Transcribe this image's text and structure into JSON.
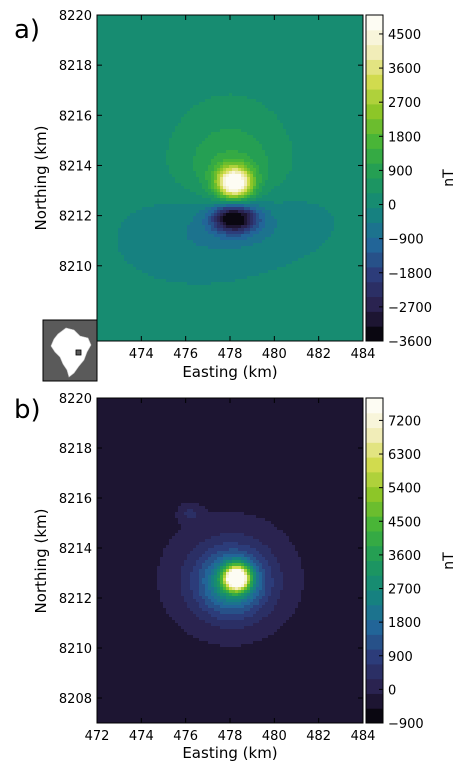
{
  "chart_data": [
    {
      "type": "heatmap",
      "panel_label": "a)",
      "xlabel": "Easting (km)",
      "ylabel": "Northing (km)",
      "xlim": [
        472,
        484
      ],
      "ylim": [
        8207,
        8220
      ],
      "x_ticks": [
        "474",
        "476",
        "478",
        "480",
        "482",
        "484"
      ],
      "y_ticks": [
        "8210",
        "8212",
        "8214",
        "8216",
        "8218",
        "8220"
      ],
      "colorbar": {
        "unit": "nT",
        "range": [
          -3600,
          5000
        ],
        "ticks": [
          "-3600",
          "-2700",
          "-1800",
          "-900",
          "0",
          "900",
          "1800",
          "2700",
          "3600",
          "4500"
        ],
        "colors": [
          "#000000",
          "#2a1f4a",
          "#2c3a78",
          "#22679a",
          "#14857c",
          "#1e9a5a",
          "#3fb23a",
          "#8ac526",
          "#d4dc50",
          "#f5f0c8",
          "#ffffff"
        ]
      },
      "background_value": 0,
      "anomalies": [
        {
          "x": 478.2,
          "y": 8213.3,
          "amplitude": 5000,
          "sx": 0.55,
          "sy": 0.45
        },
        {
          "x": 478.0,
          "y": 8213.8,
          "amplitude": 900,
          "sx": 1.6,
          "sy": 1.3
        },
        {
          "x": 478.0,
          "y": 8215.5,
          "amplitude": 300,
          "sx": 2.6,
          "sy": 2.2
        },
        {
          "x": 478.2,
          "y": 8211.9,
          "amplitude": -3600,
          "sx": 0.7,
          "sy": 0.4
        },
        {
          "x": 478.3,
          "y": 8211.8,
          "amplitude": -700,
          "sx": 2.2,
          "sy": 0.9
        },
        {
          "x": 476.5,
          "y": 8210.8,
          "amplitude": -250,
          "sx": 2.2,
          "sy": 1.0
        }
      ],
      "inset": "brazil-location-map"
    },
    {
      "type": "heatmap",
      "panel_label": "b)",
      "xlabel": "Easting (km)",
      "ylabel": "Northing (km)",
      "xlim": [
        472,
        484
      ],
      "ylim": [
        8207,
        8220
      ],
      "x_ticks": [
        "472",
        "474",
        "476",
        "478",
        "480",
        "482",
        "484"
      ],
      "y_ticks": [
        "8208",
        "8210",
        "8212",
        "8214",
        "8216",
        "8218",
        "8220"
      ],
      "colorbar": {
        "unit": "nT",
        "range": [
          -900,
          7800
        ],
        "ticks": [
          "-900",
          "0",
          "900",
          "1800",
          "2700",
          "3600",
          "4500",
          "5400",
          "6300",
          "7200"
        ],
        "colors": [
          "#000000",
          "#2a1f4a",
          "#2c3a78",
          "#22679a",
          "#14857c",
          "#1e9a5a",
          "#3fb23a",
          "#8ac526",
          "#d4dc50",
          "#f5f0c8",
          "#ffffff"
        ]
      },
      "background_value": -350,
      "anomalies": [
        {
          "x": 478.3,
          "y": 8212.8,
          "amplitude": 7800,
          "sx": 0.4,
          "sy": 0.35
        },
        {
          "x": 478.1,
          "y": 8212.6,
          "amplitude": 2500,
          "sx": 1.0,
          "sy": 0.85
        },
        {
          "x": 478.0,
          "y": 8212.8,
          "amplitude": 900,
          "sx": 2.0,
          "sy": 1.6
        },
        {
          "x": 476.2,
          "y": 8215.4,
          "amplitude": 600,
          "sx": 0.35,
          "sy": 0.25
        }
      ]
    }
  ]
}
